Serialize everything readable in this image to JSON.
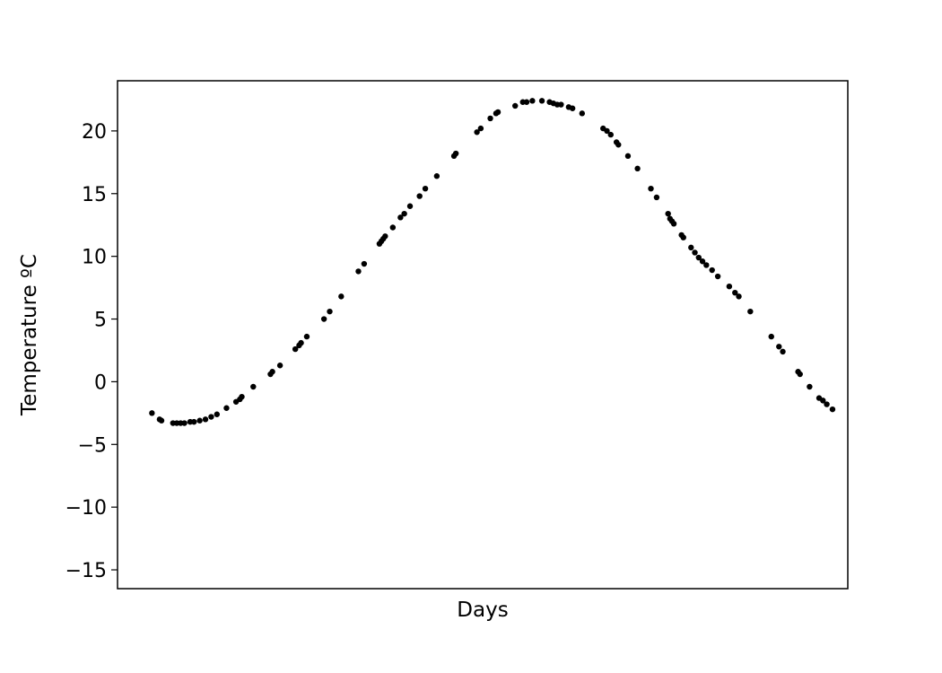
{
  "chart_data": {
    "type": "scatter",
    "title": "",
    "xlabel": "Days",
    "ylabel": "Temperature ºC",
    "xlim": [
      -9,
      373
    ],
    "ylim": [
      -16.5,
      24
    ],
    "x_ticks_visible": false,
    "y_ticks": [
      -15,
      -10,
      -5,
      0,
      5,
      10,
      15,
      20
    ],
    "y_tick_labels": [
      "−15",
      "−10",
      "−5",
      "0",
      "5",
      "10",
      "15",
      "20"
    ],
    "grid": false,
    "marker_color": "#000000",
    "points": [
      [
        9,
        -2.5
      ],
      [
        13,
        -3.0
      ],
      [
        14,
        -3.1
      ],
      [
        20,
        -3.3
      ],
      [
        22,
        -3.3
      ],
      [
        24,
        -3.3
      ],
      [
        26,
        -3.3
      ],
      [
        29,
        -3.2
      ],
      [
        31,
        -3.2
      ],
      [
        34,
        -3.1
      ],
      [
        37,
        -3.0
      ],
      [
        40,
        -2.8
      ],
      [
        43,
        -2.6
      ],
      [
        48,
        -2.1
      ],
      [
        53,
        -1.6
      ],
      [
        55,
        -1.4
      ],
      [
        56,
        -1.2
      ],
      [
        62,
        -0.4
      ],
      [
        71,
        0.6
      ],
      [
        72,
        0.8
      ],
      [
        76,
        1.3
      ],
      [
        84,
        2.6
      ],
      [
        86,
        2.9
      ],
      [
        87,
        3.1
      ],
      [
        90,
        3.6
      ],
      [
        99,
        5.0
      ],
      [
        102,
        5.6
      ],
      [
        108,
        6.8
      ],
      [
        117,
        8.8
      ],
      [
        120,
        9.4
      ],
      [
        128,
        11.0
      ],
      [
        129,
        11.2
      ],
      [
        130,
        11.4
      ],
      [
        131,
        11.6
      ],
      [
        135,
        12.3
      ],
      [
        139,
        13.1
      ],
      [
        141,
        13.4
      ],
      [
        144,
        14.0
      ],
      [
        149,
        14.8
      ],
      [
        152,
        15.4
      ],
      [
        158,
        16.4
      ],
      [
        167,
        18.0
      ],
      [
        168,
        18.2
      ],
      [
        179,
        19.9
      ],
      [
        181,
        20.2
      ],
      [
        186,
        21.0
      ],
      [
        189,
        21.4
      ],
      [
        190,
        21.5
      ],
      [
        199,
        22.0
      ],
      [
        203,
        22.3
      ],
      [
        205,
        22.3
      ],
      [
        208,
        22.4
      ],
      [
        213,
        22.4
      ],
      [
        217,
        22.3
      ],
      [
        219,
        22.2
      ],
      [
        221,
        22.1
      ],
      [
        223,
        22.1
      ],
      [
        227,
        21.9
      ],
      [
        229,
        21.8
      ],
      [
        234,
        21.4
      ],
      [
        245,
        20.2
      ],
      [
        247,
        20.0
      ],
      [
        249,
        19.7
      ],
      [
        252,
        19.1
      ],
      [
        253,
        18.9
      ],
      [
        258,
        18.0
      ],
      [
        263,
        17.0
      ],
      [
        270,
        15.4
      ],
      [
        273,
        14.7
      ],
      [
        279,
        13.4
      ],
      [
        280,
        13.0
      ],
      [
        281,
        12.8
      ],
      [
        282,
        12.6
      ],
      [
        286,
        11.7
      ],
      [
        287,
        11.5
      ],
      [
        291,
        10.7
      ],
      [
        293,
        10.3
      ],
      [
        295,
        9.9
      ],
      [
        297,
        9.6
      ],
      [
        299,
        9.3
      ],
      [
        302,
        8.9
      ],
      [
        305,
        8.4
      ],
      [
        311,
        7.6
      ],
      [
        314,
        7.1
      ],
      [
        316,
        6.8
      ],
      [
        322,
        5.6
      ],
      [
        333,
        3.6
      ],
      [
        337,
        2.8
      ],
      [
        339,
        2.4
      ],
      [
        347,
        0.8
      ],
      [
        348,
        0.6
      ],
      [
        353,
        -0.4
      ],
      [
        358,
        -1.3
      ],
      [
        360,
        -1.5
      ],
      [
        362,
        -1.8
      ],
      [
        365,
        -2.2
      ]
    ]
  }
}
